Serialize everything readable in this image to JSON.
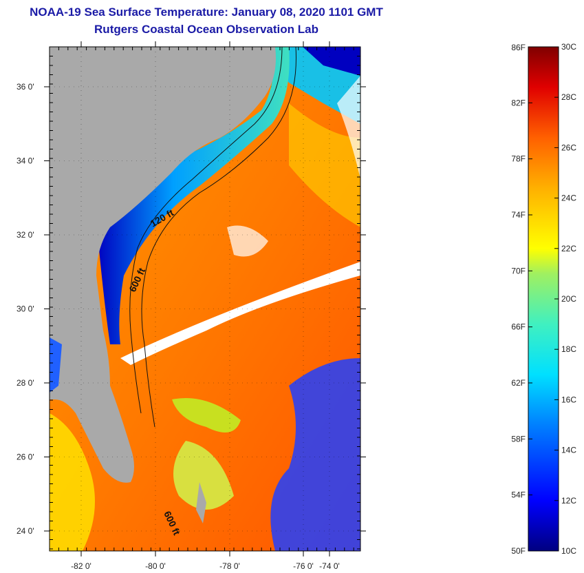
{
  "title": "NOAA-19 Sea Surface Temperature:  January 08, 2020 1101 GMT",
  "subtitle": "Rutgers Coastal Ocean Observation Lab",
  "map": {
    "lon_ticks": [
      "-82 0'",
      "-80 0'",
      "-78 0'",
      "-76 0'",
      "-74 0'"
    ],
    "lat_ticks": [
      "36 0'",
      "34 0'",
      "32 0'",
      "30 0'",
      "28 0'",
      "26 0'",
      "24 0'"
    ],
    "contour_labels": [
      "120 ft",
      "600 ft",
      "600 ft"
    ],
    "land_color": "#a9a9a9",
    "cloud_color": "#ffffff"
  },
  "colorbar": {
    "fahrenheit_labels": [
      "86F",
      "82F",
      "78F",
      "74F",
      "70F",
      "66F",
      "62F",
      "58F",
      "54F",
      "50F"
    ],
    "celsius_labels": [
      "30C",
      "28C",
      "26C",
      "24C",
      "22C",
      "20C",
      "18C",
      "16C",
      "14C",
      "12C",
      "10C"
    ],
    "range_celsius": [
      10,
      30
    ],
    "colors": [
      "#000080",
      "#0000ff",
      "#0080ff",
      "#00e0ff",
      "#40f0c0",
      "#a0f060",
      "#ffff00",
      "#ffb000",
      "#ff6000",
      "#e00000",
      "#800000"
    ]
  }
}
